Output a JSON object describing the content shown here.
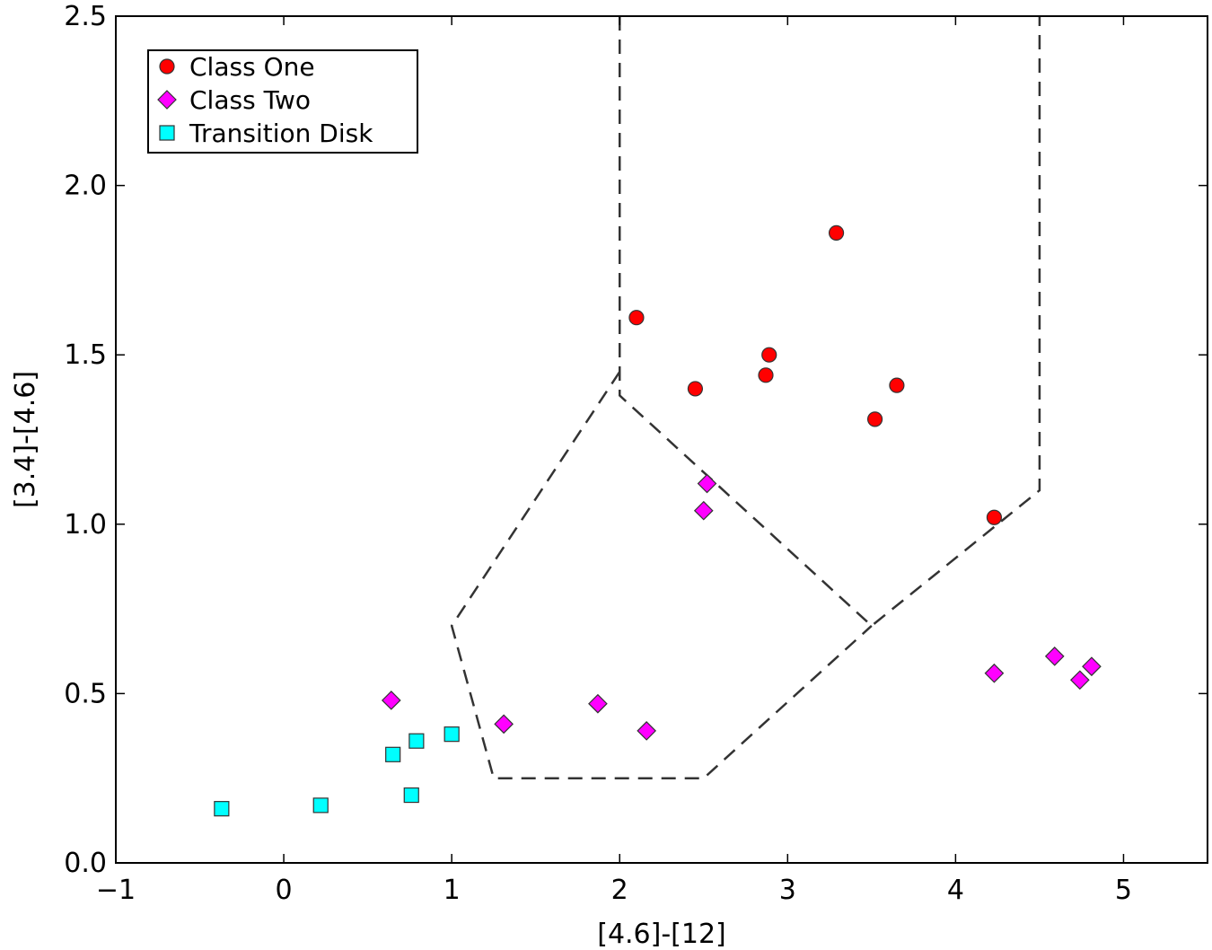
{
  "chart_data": {
    "type": "scatter",
    "xlabel": "[4.6]-[12]",
    "ylabel": "[3.4]-[4.6]",
    "xlim": [
      -1,
      5.5
    ],
    "ylim": [
      0,
      2.5
    ],
    "x_ticks": [
      -1,
      0,
      1,
      2,
      3,
      4,
      5
    ],
    "x_tick_labels": [
      "−1",
      "0",
      "1",
      "2",
      "3",
      "4",
      "5"
    ],
    "y_ticks": [
      0,
      0.5,
      1,
      1.5,
      2,
      2.5
    ],
    "y_tick_labels": [
      "0.0",
      "0.5",
      "1.0",
      "1.5",
      "2.0",
      "2.5"
    ],
    "grid": false,
    "legend_position": "top-left",
    "series": [
      {
        "name": "Class One",
        "marker": "circle",
        "color": "#ff0000",
        "points": [
          [
            2.1,
            1.61
          ],
          [
            2.45,
            1.4
          ],
          [
            2.87,
            1.44
          ],
          [
            2.89,
            1.5
          ],
          [
            3.29,
            1.86
          ],
          [
            3.52,
            1.31
          ],
          [
            3.65,
            1.41
          ],
          [
            4.23,
            1.02
          ]
        ]
      },
      {
        "name": "Class Two",
        "marker": "diamond",
        "color": "#ff00ff",
        "points": [
          [
            0.64,
            0.48
          ],
          [
            1.31,
            0.41
          ],
          [
            1.87,
            0.47
          ],
          [
            2.16,
            0.39
          ],
          [
            2.5,
            1.04
          ],
          [
            2.52,
            1.12
          ],
          [
            4.23,
            0.56
          ],
          [
            4.59,
            0.61
          ],
          [
            4.74,
            0.54
          ],
          [
            4.81,
            0.58
          ]
        ]
      },
      {
        "name": "Transition Disk",
        "marker": "square",
        "color": "#00ffff",
        "points": [
          [
            -0.37,
            0.16
          ],
          [
            0.22,
            0.17
          ],
          [
            0.65,
            0.32
          ],
          [
            0.76,
            0.2
          ],
          [
            0.79,
            0.36
          ],
          [
            1.0,
            0.38
          ]
        ]
      }
    ],
    "boundary_lines": [
      {
        "style": "dashed",
        "color": "#333333",
        "points": [
          [
            2.0,
            2.5
          ],
          [
            2.0,
            1.38
          ],
          [
            3.5,
            0.7
          ],
          [
            4.5,
            1.1
          ],
          [
            4.5,
            2.5
          ]
        ]
      },
      {
        "style": "dashed",
        "color": "#333333",
        "points": [
          [
            2.0,
            1.45
          ],
          [
            1.0,
            0.7
          ],
          [
            1.25,
            0.25
          ],
          [
            2.5,
            0.25
          ],
          [
            3.5,
            0.7
          ]
        ]
      }
    ]
  }
}
